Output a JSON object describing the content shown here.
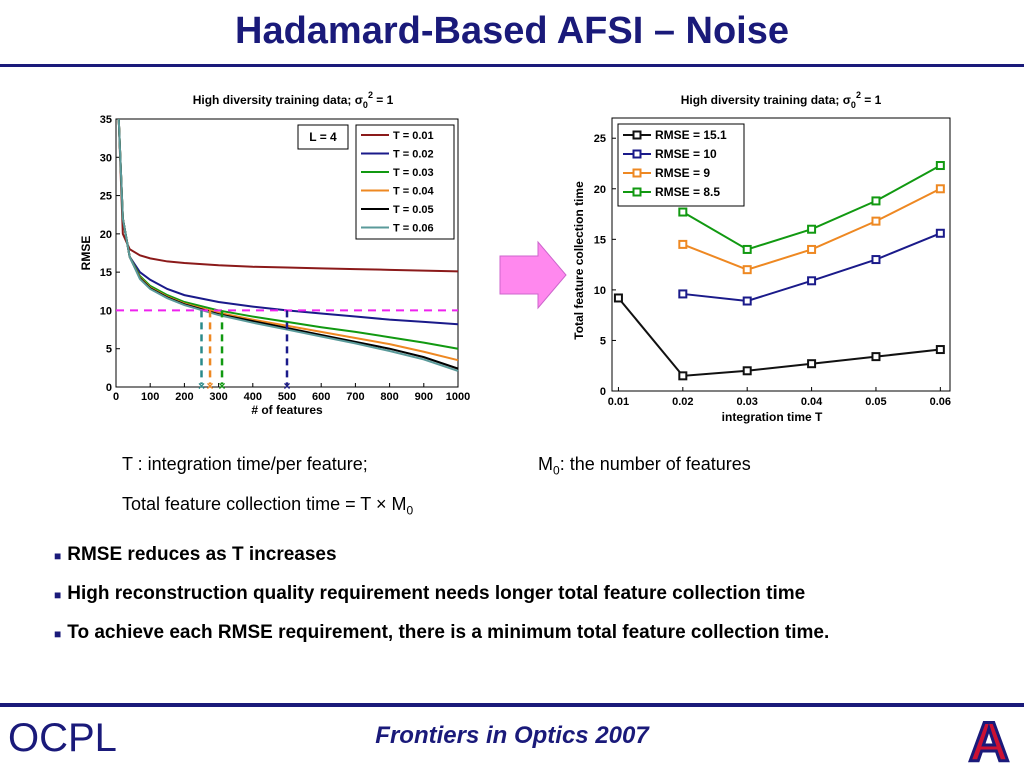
{
  "slide": {
    "title": "Hadamard-Based AFSI – Noise",
    "left_plot_title": "High diversity training data; σ",
    "left_plot_title_sub": "0",
    "left_plot_title_sup": "2",
    "left_plot_title_end": " = 1",
    "right_plot_title": "High diversity training data; σ",
    "right_plot_title_sub": "0",
    "right_plot_title_sup": "2",
    "right_plot_title_end": " = 1",
    "def_T": "T : integration time/per feature;",
    "def_M0_main": "M",
    "def_M0_sub": "0",
    "def_M0_rest": ":  the number of features",
    "def_total": "Total feature collection time = T × M",
    "def_total_sub": "0",
    "bullets": [
      "RMSE reduces as T increases",
      "High reconstruction quality requirement needs longer total feature collection time",
      "To achieve each RMSE requirement, there is a minimum total feature collection time."
    ],
    "footer": "Frontiers in Optics 2007",
    "logo_left_text": "OCPL",
    "logo_right_text": "A",
    "arrow_color": "#ff88ee"
  },
  "chart_data": [
    {
      "type": "line",
      "xlabel": "# of features",
      "ylabel": "RMSE",
      "xlim": [
        0,
        1000
      ],
      "ylim": [
        0,
        35
      ],
      "xticks": [
        0,
        100,
        200,
        300,
        400,
        500,
        600,
        700,
        800,
        900,
        1000
      ],
      "yticks": [
        0,
        5,
        10,
        15,
        20,
        25,
        30,
        35
      ],
      "annotation": "L = 4",
      "threshold_line": {
        "y": 10,
        "color": "#ee22ee"
      },
      "markers": [
        {
          "x": 250,
          "color": "#2a8a8a"
        },
        {
          "x": 275,
          "color": "#ee8822"
        },
        {
          "x": 310,
          "color": "#119911"
        },
        {
          "x": 500,
          "color": "#1a1a8a"
        }
      ],
      "series": [
        {
          "name": "T = 0.01",
          "color": "#8b1a1a",
          "x": [
            8,
            20,
            40,
            70,
            100,
            150,
            200,
            300,
            400,
            500,
            600,
            700,
            800,
            900,
            1000
          ],
          "y": [
            35,
            20,
            18,
            17.2,
            16.8,
            16.4,
            16.2,
            15.9,
            15.7,
            15.6,
            15.5,
            15.4,
            15.3,
            15.2,
            15.1
          ]
        },
        {
          "name": "T = 0.02",
          "color": "#1a1a8a",
          "x": [
            8,
            20,
            40,
            70,
            100,
            150,
            200,
            300,
            400,
            500,
            600,
            700,
            800,
            900,
            1000
          ],
          "y": [
            35,
            22,
            17,
            15,
            14,
            12.8,
            12,
            11.1,
            10.5,
            10,
            9.6,
            9.2,
            8.8,
            8.5,
            8.2
          ]
        },
        {
          "name": "T = 0.03",
          "color": "#119911",
          "x": [
            8,
            20,
            40,
            70,
            100,
            150,
            200,
            300,
            400,
            500,
            600,
            700,
            800,
            900,
            1000
          ],
          "y": [
            35,
            22,
            17,
            14.5,
            13.2,
            12,
            11.1,
            10,
            9.2,
            8.5,
            7.8,
            7.2,
            6.5,
            5.8,
            5.0
          ]
        },
        {
          "name": "T = 0.04",
          "color": "#ee8822",
          "x": [
            8,
            20,
            40,
            70,
            100,
            150,
            200,
            300,
            400,
            500,
            600,
            700,
            800,
            900,
            1000
          ],
          "y": [
            35,
            22,
            17,
            14.3,
            13,
            11.8,
            10.9,
            9.7,
            8.8,
            8.0,
            7.2,
            6.4,
            5.6,
            4.6,
            3.5
          ]
        },
        {
          "name": "T = 0.05",
          "color": "#000000",
          "x": [
            8,
            20,
            40,
            70,
            100,
            150,
            200,
            300,
            400,
            500,
            600,
            700,
            800,
            900,
            1000
          ],
          "y": [
            35,
            22,
            17,
            14.2,
            12.9,
            11.7,
            10.8,
            9.5,
            8.6,
            7.7,
            6.8,
            5.9,
            5.0,
            3.9,
            2.4
          ]
        },
        {
          "name": "T = 0.06",
          "color": "#5a9a9a",
          "x": [
            8,
            20,
            40,
            70,
            100,
            150,
            200,
            300,
            400,
            500,
            600,
            700,
            800,
            900,
            1000
          ],
          "y": [
            35,
            22,
            17,
            14.1,
            12.8,
            11.6,
            10.7,
            9.4,
            8.4,
            7.5,
            6.6,
            5.7,
            4.7,
            3.6,
            2.1
          ]
        }
      ],
      "legend": "top-right"
    },
    {
      "type": "line",
      "xlabel": "integration time T",
      "ylabel": "Total feature collection time",
      "x": [
        0.01,
        0.02,
        0.03,
        0.04,
        0.05,
        0.06
      ],
      "xtick_labels": [
        "0.01",
        "0.02",
        "0.03",
        "0.04",
        "0.05",
        "0.06"
      ],
      "ylim": [
        0,
        27
      ],
      "yticks": [
        0,
        5,
        10,
        15,
        20,
        25
      ],
      "series": [
        {
          "name": "RMSE = 15.1",
          "color": "#111111",
          "x": [
            0.01,
            0.02,
            0.03,
            0.04,
            0.05,
            0.06
          ],
          "y": [
            9.2,
            1.5,
            2.0,
            2.7,
            3.4,
            4.1
          ]
        },
        {
          "name": "RMSE = 10",
          "color": "#1a1a8a",
          "x": [
            0.02,
            0.03,
            0.04,
            0.05,
            0.06
          ],
          "y": [
            9.6,
            8.9,
            10.9,
            13.0,
            15.6
          ]
        },
        {
          "name": "RMSE = 9",
          "color": "#ee8822",
          "x": [
            0.02,
            0.03,
            0.04,
            0.05,
            0.06
          ],
          "y": [
            14.5,
            12.0,
            14.0,
            16.8,
            20.0
          ]
        },
        {
          "name": "RMSE = 8.5",
          "color": "#119911",
          "x": [
            0.02,
            0.03,
            0.04,
            0.05,
            0.06
          ],
          "y": [
            17.7,
            14.0,
            16.0,
            18.8,
            22.3
          ]
        }
      ],
      "legend": "top-left"
    }
  ]
}
